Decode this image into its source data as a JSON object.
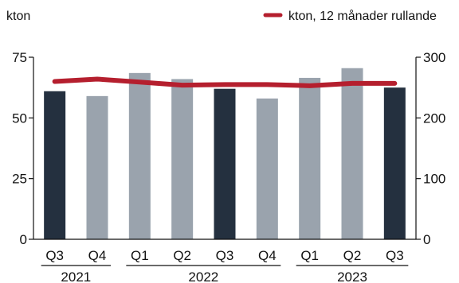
{
  "chart_data": {
    "type": "bar",
    "left_unit": "kton",
    "legend_label": "kton, 12 månader rullande",
    "legend_position": "top-right",
    "grid": false,
    "quarters": [
      "Q3",
      "Q4",
      "Q1",
      "Q2",
      "Q3",
      "Q4",
      "Q1",
      "Q2",
      "Q3"
    ],
    "years": [
      {
        "label": "2021",
        "span": [
          0,
          1
        ]
      },
      {
        "label": "2022",
        "span": [
          2,
          5
        ]
      },
      {
        "label": "2023",
        "span": [
          6,
          8
        ]
      }
    ],
    "ylim_left": [
      0,
      75
    ],
    "yticks_left": [
      0,
      25,
      50,
      75
    ],
    "ylim_right": [
      0,
      300
    ],
    "yticks_right": [
      0,
      100,
      200,
      300
    ],
    "series": [
      {
        "type": "bar",
        "axis": "left",
        "values": [
          61,
          59,
          68.5,
          66,
          62,
          58,
          66.5,
          70.5,
          62.5
        ],
        "bar_colors": [
          "#24303f",
          "#9aa3ad",
          "#9aa3ad",
          "#9aa3ad",
          "#24303f",
          "#9aa3ad",
          "#9aa3ad",
          "#9aa3ad",
          "#24303f"
        ]
      },
      {
        "type": "line",
        "axis": "right",
        "name": "kton, 12 månader rullande",
        "color": "#b51f2e",
        "values": [
          260,
          264,
          259,
          254,
          255,
          255,
          253,
          257,
          257
        ]
      }
    ]
  }
}
